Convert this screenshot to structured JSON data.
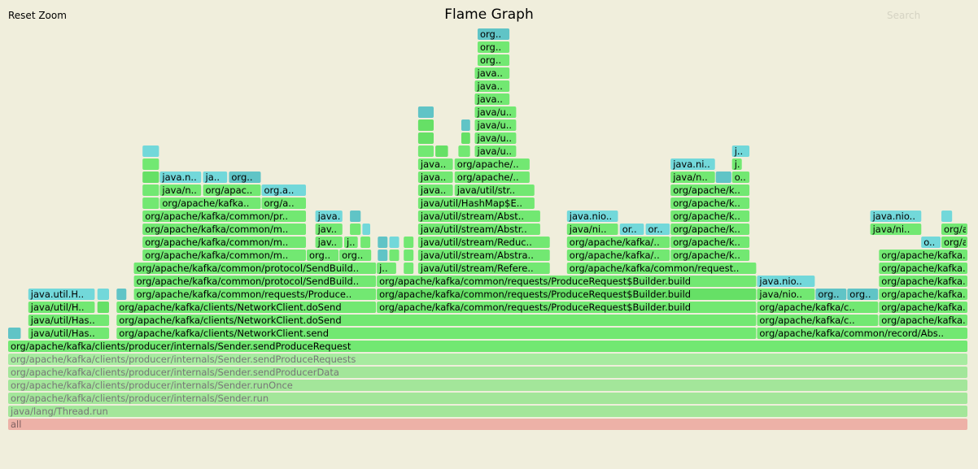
{
  "header": {
    "reset_zoom_label": "Reset Zoom",
    "title": "Flame Graph",
    "search_label": "Search"
  },
  "colors": {
    "background": "#f0eedc",
    "green": "#72e872",
    "bright_green": "#66e066",
    "cyan": "#72d8da",
    "teal": "#60c4c6",
    "faded_green": "#a7eba0",
    "faded_green_2": "#a3e69a",
    "root_red": "#edb1a7"
  },
  "chart_data": {
    "type": "flamegraph",
    "title": "Flame Graph",
    "unit": "fraction of samples",
    "frames": [
      {
        "label": "all",
        "depth": 0,
        "start": 0.0,
        "width": 1.0,
        "color": "root_red",
        "text_color": "#806060"
      },
      {
        "label": "java/lang/Thread.run",
        "depth": 1,
        "start": 0.0,
        "width": 1.0,
        "color": "faded_green_2",
        "text_color": "#777"
      },
      {
        "label": "org/apache/kafka/clients/producer/internals/Sender.run",
        "depth": 2,
        "start": 0.0,
        "width": 1.0,
        "color": "faded_green_2",
        "text_color": "#777"
      },
      {
        "label": "org/apache/kafka/clients/producer/internals/Sender.runOnce",
        "depth": 3,
        "start": 0.0,
        "width": 1.0,
        "color": "faded_green_2",
        "text_color": "#777"
      },
      {
        "label": "org/apache/kafka/clients/producer/internals/Sender.sendProducerData",
        "depth": 4,
        "start": 0.0,
        "width": 1.0,
        "color": "faded_green_2",
        "text_color": "#777"
      },
      {
        "label": "org/apache/kafka/clients/producer/internals/Sender.sendProduceRequests",
        "depth": 5,
        "start": 0.0,
        "width": 1.0,
        "color": "faded_green",
        "text_color": "#777"
      },
      {
        "label": "org/apache/kafka/clients/producer/internals/Sender.sendProduceRequest",
        "depth": 6,
        "start": 0.0,
        "width": 1.0,
        "color": "green"
      },
      {
        "label": "",
        "depth": 7,
        "start": 0.0,
        "width": 0.014,
        "color": "teal"
      },
      {
        "label": "java/util/Has..",
        "depth": 7,
        "start": 0.021,
        "width": 0.085,
        "color": "green"
      },
      {
        "label": "org/apache/kafka/clients/NetworkClient.send",
        "depth": 7,
        "start": 0.113,
        "width": 0.667,
        "color": "green"
      },
      {
        "label": "org/apache/kafka/common/record/Abs..",
        "depth": 7,
        "start": 0.78,
        "width": 0.22,
        "color": "green"
      },
      {
        "label": "java/util/Has..",
        "depth": 8,
        "start": 0.021,
        "width": 0.085,
        "color": "green"
      },
      {
        "label": "org/apache/kafka/clients/NetworkClient.doSend",
        "depth": 8,
        "start": 0.113,
        "width": 0.667,
        "color": "green"
      },
      {
        "label": "org/apache/kafka/c..",
        "depth": 8,
        "start": 0.78,
        "width": 0.127,
        "color": "green"
      },
      {
        "label": "org/apache/kafka..",
        "depth": 8,
        "start": 0.907,
        "width": 0.093,
        "color": "green"
      },
      {
        "label": "java/util/H..",
        "depth": 9,
        "start": 0.021,
        "width": 0.07,
        "color": "green"
      },
      {
        "label": "",
        "depth": 9,
        "start": 0.093,
        "width": 0.013,
        "color": "bright_green"
      },
      {
        "label": "org/apache/kafka/clients/NetworkClient.doSend",
        "depth": 9,
        "start": 0.113,
        "width": 0.271,
        "color": "green"
      },
      {
        "label": "org/apache/kafka/common/requests/ProduceRequest$Builder.build",
        "depth": 9,
        "start": 0.384,
        "width": 0.396,
        "color": "green"
      },
      {
        "label": "org/apache/kafka/c..",
        "depth": 9,
        "start": 0.78,
        "width": 0.127,
        "color": "green"
      },
      {
        "label": "org/apache/kafka..",
        "depth": 9,
        "start": 0.907,
        "width": 0.093,
        "color": "green"
      },
      {
        "label": "java.util.H..",
        "depth": 10,
        "start": 0.021,
        "width": 0.07,
        "color": "cyan"
      },
      {
        "label": "",
        "depth": 10,
        "start": 0.093,
        "width": 0.013,
        "color": "cyan"
      },
      {
        "label": "",
        "depth": 10,
        "start": 0.113,
        "width": 0.011,
        "color": "teal"
      },
      {
        "label": "org/apache/kafka/common/requests/Produce..",
        "depth": 10,
        "start": 0.131,
        "width": 0.253,
        "color": "green"
      },
      {
        "label": "org/apache/kafka/common/requests/ProduceRequest$Builder.build",
        "depth": 10,
        "start": 0.384,
        "width": 0.396,
        "color": "bright_green"
      },
      {
        "label": "java/nio..",
        "depth": 10,
        "start": 0.78,
        "width": 0.061,
        "color": "green"
      },
      {
        "label": "org..",
        "depth": 10,
        "start": 0.841,
        "width": 0.033,
        "color": "teal"
      },
      {
        "label": "org..",
        "depth": 10,
        "start": 0.874,
        "width": 0.033,
        "color": "teal"
      },
      {
        "label": "org/apache/kafka..",
        "depth": 10,
        "start": 0.907,
        "width": 0.093,
        "color": "green"
      },
      {
        "label": "org/apache/kafka/common/protocol/SendBuild..",
        "depth": 11,
        "start": 0.131,
        "width": 0.253,
        "color": "green"
      },
      {
        "label": "org/apache/kafka/common/requests/ProduceRequest$Builder.build",
        "depth": 11,
        "start": 0.384,
        "width": 0.396,
        "color": "green"
      },
      {
        "label": "java.nio..",
        "depth": 11,
        "start": 0.78,
        "width": 0.061,
        "color": "cyan"
      },
      {
        "label": "org/apache/kafka..",
        "depth": 11,
        "start": 0.907,
        "width": 0.093,
        "color": "green"
      },
      {
        "label": "org/apache/kafka/common/protocol/SendBuild..",
        "depth": 12,
        "start": 0.131,
        "width": 0.253,
        "color": "green"
      },
      {
        "label": "j..",
        "depth": 12,
        "start": 0.384,
        "width": 0.021,
        "color": "green"
      },
      {
        "label": "",
        "depth": 12,
        "start": 0.412,
        "width": 0.011,
        "color": "green"
      },
      {
        "label": "org/apache/kafka/common/protocol/SendBuild..",
        "depth": 12,
        "start": 0.131,
        "width": 0.253,
        "color": "green"
      },
      {
        "label": "java/util/stream/Refere..",
        "depth": 12,
        "start": 0.427,
        "width": 0.138,
        "color": "green"
      },
      {
        "label": "org/apache/kafka/common/request..",
        "depth": 12,
        "start": 0.582,
        "width": 0.198,
        "color": "green"
      },
      {
        "label": "org/apache/kafka..",
        "depth": 12,
        "start": 0.907,
        "width": 0.093,
        "color": "green"
      },
      {
        "label": "org/apache/kafka/common/m..",
        "depth": 13,
        "start": 0.14,
        "width": 0.171,
        "color": "green"
      },
      {
        "label": "org..",
        "depth": 13,
        "start": 0.311,
        "width": 0.034,
        "color": "green"
      },
      {
        "label": "org..",
        "depth": 13,
        "start": 0.345,
        "width": 0.034,
        "color": "green"
      },
      {
        "label": "",
        "depth": 13,
        "start": 0.385,
        "width": 0.011,
        "color": "teal"
      },
      {
        "label": "",
        "depth": 13,
        "start": 0.397,
        "width": 0.011,
        "color": "green"
      },
      {
        "label": "",
        "depth": 13,
        "start": 0.412,
        "width": 0.011,
        "color": "green"
      },
      {
        "label": "java/util/stream/Abstra..",
        "depth": 13,
        "start": 0.427,
        "width": 0.138,
        "color": "green"
      },
      {
        "label": "org/apache/kafka/..",
        "depth": 13,
        "start": 0.582,
        "width": 0.108,
        "color": "green"
      },
      {
        "label": "org/apache/k..",
        "depth": 13,
        "start": 0.69,
        "width": 0.083,
        "color": "green"
      },
      {
        "label": "org/apache/kafka..",
        "depth": 13,
        "start": 0.907,
        "width": 0.093,
        "color": "green"
      },
      {
        "label": "org/apache/kafka/common/m..",
        "depth": 14,
        "start": 0.14,
        "width": 0.171,
        "color": "green"
      },
      {
        "label": "jav..",
        "depth": 14,
        "start": 0.32,
        "width": 0.029,
        "color": "green"
      },
      {
        "label": "j..",
        "depth": 14,
        "start": 0.35,
        "width": 0.015,
        "color": "green"
      },
      {
        "label": "",
        "depth": 14,
        "start": 0.367,
        "width": 0.011,
        "color": "green"
      },
      {
        "label": "",
        "depth": 14,
        "start": 0.385,
        "width": 0.011,
        "color": "teal"
      },
      {
        "label": "",
        "depth": 14,
        "start": 0.397,
        "width": 0.011,
        "color": "cyan"
      },
      {
        "label": "",
        "depth": 14,
        "start": 0.412,
        "width": 0.011,
        "color": "green"
      },
      {
        "label": "java/util/stream/Reduc..",
        "depth": 14,
        "start": 0.427,
        "width": 0.138,
        "color": "green"
      },
      {
        "label": "org/apache/kafka/..",
        "depth": 14,
        "start": 0.582,
        "width": 0.108,
        "color": "green"
      },
      {
        "label": "org/apache/k..",
        "depth": 14,
        "start": 0.69,
        "width": 0.083,
        "color": "green"
      },
      {
        "label": "o..",
        "depth": 14,
        "start": 0.951,
        "width": 0.021,
        "color": "cyan"
      },
      {
        "label": "org/apache/ka..",
        "depth": 14,
        "start": 0.972,
        "width": 0.028,
        "color": "green"
      },
      {
        "label": "org/apache/kafka/common/m..",
        "depth": 15,
        "start": 0.14,
        "width": 0.171,
        "color": "green"
      },
      {
        "label": "jav..",
        "depth": 15,
        "start": 0.32,
        "width": 0.029,
        "color": "green"
      },
      {
        "label": "",
        "depth": 15,
        "start": 0.356,
        "width": 0.012,
        "color": "green"
      },
      {
        "label": "",
        "depth": 15,
        "start": 0.369,
        "width": 0.009,
        "color": "cyan"
      },
      {
        "label": "java/util/stream/Abstr..",
        "depth": 15,
        "start": 0.427,
        "width": 0.128,
        "color": "green"
      },
      {
        "label": "java/ni..",
        "depth": 15,
        "start": 0.582,
        "width": 0.054,
        "color": "green"
      },
      {
        "label": "or..",
        "depth": 15,
        "start": 0.637,
        "width": 0.026,
        "color": "cyan"
      },
      {
        "label": "or..",
        "depth": 15,
        "start": 0.664,
        "width": 0.026,
        "color": "cyan"
      },
      {
        "label": "org/apache/k..",
        "depth": 15,
        "start": 0.69,
        "width": 0.083,
        "color": "green"
      },
      {
        "label": "java/ni..",
        "depth": 15,
        "start": 0.898,
        "width": 0.054,
        "color": "green"
      },
      {
        "label": "org/apache/ka..",
        "depth": 15,
        "start": 0.972,
        "width": 0.028,
        "color": "green"
      },
      {
        "label": "org/apache/kafka/common/pr..",
        "depth": 16,
        "start": 0.14,
        "width": 0.171,
        "color": "green"
      },
      {
        "label": "java..",
        "depth": 16,
        "start": 0.32,
        "width": 0.029,
        "color": "cyan"
      },
      {
        "label": "",
        "depth": 16,
        "start": 0.356,
        "width": 0.012,
        "color": "teal"
      },
      {
        "label": "java/util/stream/Abst..",
        "depth": 16,
        "start": 0.427,
        "width": 0.128,
        "color": "green"
      },
      {
        "label": "java.nio..",
        "depth": 16,
        "start": 0.582,
        "width": 0.054,
        "color": "cyan"
      },
      {
        "label": "org/apache/k..",
        "depth": 16,
        "start": 0.69,
        "width": 0.083,
        "color": "green"
      },
      {
        "label": "java.nio..",
        "depth": 16,
        "start": 0.898,
        "width": 0.054,
        "color": "cyan"
      },
      {
        "label": "",
        "depth": 16,
        "start": 0.972,
        "width": 0.012,
        "color": "cyan"
      },
      {
        "label": "",
        "depth": 17,
        "start": 0.14,
        "width": 0.018,
        "color": "green"
      },
      {
        "label": "org/apache/kafka..",
        "depth": 17,
        "start": 0.158,
        "width": 0.106,
        "color": "green"
      },
      {
        "label": "org/a..",
        "depth": 17,
        "start": 0.264,
        "width": 0.047,
        "color": "green"
      },
      {
        "label": "java/util/HashMap$E..",
        "depth": 17,
        "start": 0.427,
        "width": 0.122,
        "color": "green"
      },
      {
        "label": "org/apache/k..",
        "depth": 17,
        "start": 0.69,
        "width": 0.083,
        "color": "green"
      },
      {
        "label": "",
        "depth": 18,
        "start": 0.14,
        "width": 0.018,
        "color": "green"
      },
      {
        "label": "java/n..",
        "depth": 18,
        "start": 0.158,
        "width": 0.044,
        "color": "green"
      },
      {
        "label": "org/apac..",
        "depth": 18,
        "start": 0.203,
        "width": 0.061,
        "color": "green"
      },
      {
        "label": "org.a..",
        "depth": 18,
        "start": 0.264,
        "width": 0.047,
        "color": "cyan"
      },
      {
        "label": "java..",
        "depth": 18,
        "start": 0.427,
        "width": 0.037,
        "color": "green"
      },
      {
        "label": "java/util/str..",
        "depth": 18,
        "start": 0.465,
        "width": 0.084,
        "color": "green"
      },
      {
        "label": "org/apache/k..",
        "depth": 18,
        "start": 0.69,
        "width": 0.083,
        "color": "green"
      },
      {
        "label": "",
        "depth": 19,
        "start": 0.14,
        "width": 0.018,
        "color": "bright_green"
      },
      {
        "label": "java.n..",
        "depth": 19,
        "start": 0.158,
        "width": 0.044,
        "color": "cyan"
      },
      {
        "label": "ja..",
        "depth": 19,
        "start": 0.203,
        "width": 0.026,
        "color": "cyan"
      },
      {
        "label": "org..",
        "depth": 19,
        "start": 0.23,
        "width": 0.034,
        "color": "teal"
      },
      {
        "label": "java..",
        "depth": 19,
        "start": 0.427,
        "width": 0.037,
        "color": "green"
      },
      {
        "label": "org/apache/..",
        "depth": 19,
        "start": 0.465,
        "width": 0.079,
        "color": "green"
      },
      {
        "label": "java/n..",
        "depth": 19,
        "start": 0.69,
        "width": 0.047,
        "color": "green"
      },
      {
        "label": "",
        "depth": 19,
        "start": 0.737,
        "width": 0.017,
        "color": "teal"
      },
      {
        "label": "o..",
        "depth": 19,
        "start": 0.754,
        "width": 0.019,
        "color": "green"
      },
      {
        "label": "",
        "depth": 20,
        "start": 0.14,
        "width": 0.018,
        "color": "green"
      },
      {
        "label": "java..",
        "depth": 20,
        "start": 0.427,
        "width": 0.037,
        "color": "green"
      },
      {
        "label": "org/apache/..",
        "depth": 20,
        "start": 0.465,
        "width": 0.079,
        "color": "green"
      },
      {
        "label": "java.ni..",
        "depth": 20,
        "start": 0.69,
        "width": 0.047,
        "color": "cyan"
      },
      {
        "label": "j..",
        "depth": 20,
        "start": 0.754,
        "width": 0.011,
        "color": "green"
      },
      {
        "label": "",
        "depth": 21,
        "start": 0.14,
        "width": 0.018,
        "color": "cyan"
      },
      {
        "label": "",
        "depth": 21,
        "start": 0.427,
        "width": 0.017,
        "color": "green"
      },
      {
        "label": "",
        "depth": 21,
        "start": 0.445,
        "width": 0.014,
        "color": "bright_green"
      },
      {
        "label": "",
        "depth": 21,
        "start": 0.469,
        "width": 0.013,
        "color": "green"
      },
      {
        "label": "java/u..",
        "depth": 21,
        "start": 0.486,
        "width": 0.044,
        "color": "green"
      },
      {
        "label": "j..",
        "depth": 21,
        "start": 0.754,
        "width": 0.019,
        "color": "cyan"
      },
      {
        "label": "",
        "depth": 22,
        "start": 0.427,
        "width": 0.017,
        "color": "bright_green"
      },
      {
        "label": "",
        "depth": 22,
        "start": 0.472,
        "width": 0.01,
        "color": "bright_green"
      },
      {
        "label": "java/u..",
        "depth": 22,
        "start": 0.486,
        "width": 0.044,
        "color": "green"
      },
      {
        "label": "",
        "depth": 23,
        "start": 0.427,
        "width": 0.017,
        "color": "bright_green"
      },
      {
        "label": "",
        "depth": 23,
        "start": 0.472,
        "width": 0.01,
        "color": "teal"
      },
      {
        "label": "java/u..",
        "depth": 23,
        "start": 0.486,
        "width": 0.044,
        "color": "green"
      },
      {
        "label": "",
        "depth": 24,
        "start": 0.427,
        "width": 0.017,
        "color": "teal"
      },
      {
        "label": "java/u..",
        "depth": 24,
        "start": 0.486,
        "width": 0.044,
        "color": "green"
      },
      {
        "label": "java..",
        "depth": 25,
        "start": 0.486,
        "width": 0.037,
        "color": "green"
      },
      {
        "label": "java..",
        "depth": 26,
        "start": 0.486,
        "width": 0.037,
        "color": "green"
      },
      {
        "label": "java..",
        "depth": 27,
        "start": 0.486,
        "width": 0.037,
        "color": "green"
      },
      {
        "label": "org..",
        "depth": 28,
        "start": 0.489,
        "width": 0.034,
        "color": "green"
      },
      {
        "label": "org..",
        "depth": 29,
        "start": 0.489,
        "width": 0.034,
        "color": "green"
      },
      {
        "label": "org..",
        "depth": 30,
        "start": 0.489,
        "width": 0.034,
        "color": "teal"
      }
    ]
  }
}
